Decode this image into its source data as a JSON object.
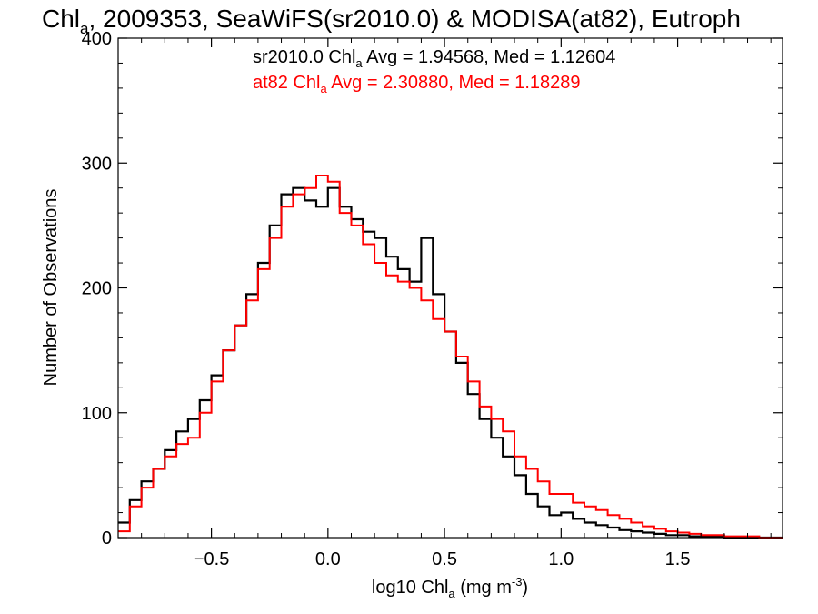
{
  "chart_data": {
    "type": "line",
    "step": true,
    "title": {
      "pre": "Chl",
      "sub": "a",
      "post": ", 2009353, SeaWiFS(sr2010.0) & MODISA(at82), Eutroph"
    },
    "xlabel": {
      "pre": "log10 Chl",
      "sub": "a",
      "mid": " (mg m",
      "sup": "-3",
      "post": ")"
    },
    "ylabel": "Number of Observations",
    "xlim": [
      -0.9,
      1.95
    ],
    "ylim": [
      0,
      400
    ],
    "xticks": [
      -0.5,
      0.0,
      0.5,
      1.0,
      1.5
    ],
    "xtick_labels": [
      "−0.5",
      "0.0",
      "0.5",
      "1.0",
      "1.5"
    ],
    "yticks": [
      0,
      100,
      200,
      300,
      400
    ],
    "ytick_labels": [
      "0",
      "100",
      "200",
      "300",
      "400"
    ],
    "grid": false,
    "annotations": [
      {
        "pre": "sr2010.0 Chl",
        "sub": "a",
        "post": " Avg = 1.94568, Med = 1.12604",
        "color": "#000000"
      },
      {
        "pre": "at82 Chl",
        "sub": "a",
        "post": " Avg = 2.30880, Med = 1.18289",
        "color": "#ff0000"
      }
    ],
    "x": [
      -0.9,
      -0.85,
      -0.8,
      -0.75,
      -0.7,
      -0.65,
      -0.6,
      -0.55,
      -0.5,
      -0.45,
      -0.4,
      -0.35,
      -0.3,
      -0.25,
      -0.2,
      -0.15,
      -0.1,
      -0.05,
      0.0,
      0.05,
      0.1,
      0.15,
      0.2,
      0.25,
      0.3,
      0.35,
      0.4,
      0.45,
      0.5,
      0.55,
      0.6,
      0.65,
      0.7,
      0.75,
      0.8,
      0.85,
      0.9,
      0.95,
      1.0,
      1.05,
      1.1,
      1.15,
      1.2,
      1.25,
      1.3,
      1.35,
      1.4,
      1.45,
      1.5,
      1.55,
      1.6,
      1.65,
      1.7,
      1.75,
      1.8,
      1.85,
      1.9,
      1.95
    ],
    "series": [
      {
        "name": "sr2010.0",
        "color": "#000000",
        "values": [
          12,
          30,
          45,
          55,
          70,
          85,
          95,
          110,
          130,
          150,
          170,
          195,
          220,
          250,
          275,
          280,
          270,
          265,
          280,
          265,
          255,
          245,
          240,
          225,
          215,
          205,
          240,
          195,
          165,
          140,
          115,
          95,
          80,
          65,
          50,
          35,
          25,
          18,
          20,
          15,
          12,
          10,
          8,
          6,
          5,
          4,
          3,
          2,
          2,
          1,
          1,
          1,
          0,
          0,
          0,
          0,
          0,
          0
        ]
      },
      {
        "name": "at82",
        "color": "#ff0000",
        "values": [
          5,
          25,
          40,
          55,
          65,
          75,
          80,
          100,
          125,
          150,
          170,
          190,
          215,
          240,
          265,
          275,
          280,
          290,
          285,
          260,
          250,
          235,
          220,
          210,
          205,
          200,
          190,
          175,
          165,
          145,
          125,
          105,
          95,
          85,
          65,
          55,
          45,
          35,
          35,
          28,
          25,
          22,
          18,
          15,
          12,
          9,
          7,
          5,
          4,
          3,
          2,
          2,
          1,
          1,
          1,
          0,
          0,
          0
        ]
      }
    ]
  }
}
